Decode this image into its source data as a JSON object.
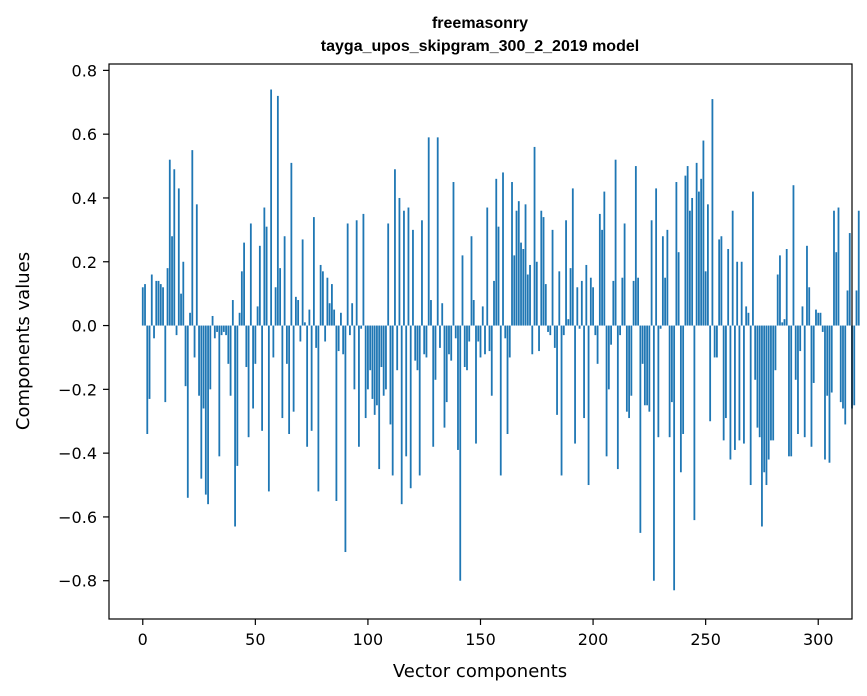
{
  "chart_data": {
    "type": "bar",
    "title": "freemasonry",
    "subtitle": "tayga_upos_skipgram_300_2_2019 model",
    "xlabel": "Vector components",
    "ylabel": "Components values",
    "xlim": [
      -15,
      315
    ],
    "ylim": [
      -0.92,
      0.82
    ],
    "xticks": [
      0,
      50,
      100,
      150,
      200,
      250,
      300
    ],
    "xtick_labels": [
      "0",
      "50",
      "100",
      "150",
      "200",
      "250",
      "300"
    ],
    "yticks": [
      -0.8,
      -0.6,
      -0.4,
      -0.2,
      0.0,
      0.2,
      0.4,
      0.6,
      0.8
    ],
    "ytick_labels": [
      "−0.8",
      "−0.6",
      "−0.4",
      "−0.2",
      "0.0",
      "0.2",
      "0.4",
      "0.6",
      "0.8"
    ],
    "bar_color": "#1f77b4",
    "grid": false,
    "values": [
      0.12,
      0.13,
      -0.34,
      -0.23,
      0.16,
      -0.04,
      0.14,
      0.14,
      0.13,
      0.12,
      -0.24,
      0.18,
      0.52,
      0.28,
      0.49,
      -0.03,
      0.43,
      0.1,
      0.2,
      -0.19,
      -0.54,
      0.04,
      0.55,
      -0.1,
      0.38,
      -0.22,
      -0.48,
      -0.26,
      -0.53,
      -0.56,
      -0.2,
      0.03,
      -0.04,
      -0.02,
      -0.41,
      -0.03,
      -0.02,
      -0.03,
      -0.12,
      -0.22,
      0.08,
      -0.63,
      -0.44,
      0.04,
      0.17,
      0.26,
      -0.13,
      -0.35,
      0.32,
      -0.26,
      -0.12,
      0.06,
      0.25,
      -0.33,
      0.37,
      0.31,
      -0.52,
      0.74,
      -0.1,
      0.12,
      0.72,
      0.18,
      -0.29,
      0.28,
      -0.12,
      -0.34,
      0.51,
      -0.27,
      0.09,
      0.08,
      -0.05,
      0.27,
      0.01,
      -0.38,
      0.05,
      -0.33,
      0.34,
      -0.07,
      -0.52,
      0.19,
      0.17,
      -0.05,
      0.15,
      0.07,
      0.13,
      0.05,
      -0.55,
      -0.08,
      0.04,
      -0.09,
      -0.71,
      0.32,
      -0.03,
      0.07,
      -0.2,
      0.33,
      -0.38,
      -0.01,
      0.35,
      -0.29,
      -0.2,
      -0.14,
      -0.23,
      -0.28,
      -0.25,
      -0.45,
      -0.13,
      -0.22,
      -0.2,
      0.32,
      -0.31,
      -0.47,
      0.49,
      -0.14,
      0.4,
      -0.56,
      0.36,
      -0.41,
      0.37,
      -0.51,
      0.3,
      -0.11,
      -0.14,
      -0.47,
      0.33,
      -0.09,
      -0.1,
      0.59,
      0.08,
      -0.38,
      -0.17,
      0.59,
      -0.07,
      0.07,
      -0.32,
      -0.24,
      -0.09,
      -0.11,
      0.45,
      -0.04,
      -0.39,
      -0.8,
      0.22,
      -0.13,
      -0.14,
      -0.05,
      0.28,
      0.08,
      -0.37,
      -0.05,
      -0.1,
      0.06,
      -0.09,
      0.37,
      -0.08,
      -0.22,
      0.14,
      0.46,
      0.31,
      -0.47,
      0.48,
      -0.04,
      -0.34,
      -0.1,
      0.45,
      0.22,
      0.36,
      0.39,
      0.26,
      0.24,
      0.38,
      0.16,
      0.19,
      -0.09,
      0.56,
      0.2,
      -0.08,
      0.36,
      0.34,
      0.13,
      -0.02,
      -0.03,
      0.3,
      -0.07,
      -0.28,
      0.17,
      -0.47,
      -0.03,
      0.33,
      0.02,
      0.18,
      0.43,
      -0.37,
      0.12,
      -0.01,
      0.14,
      -0.29,
      0.19,
      -0.5,
      0.15,
      0.12,
      -0.03,
      -0.12,
      0.35,
      0.3,
      0.42,
      -0.41,
      -0.2,
      -0.06,
      0.14,
      0.52,
      -0.45,
      -0.03,
      0.15,
      0.32,
      -0.27,
      -0.29,
      -0.22,
      0.14,
      0.5,
      0.15,
      -0.65,
      -0.12,
      -0.25,
      -0.25,
      -0.27,
      0.33,
      -0.8,
      0.43,
      -0.35,
      -0.01,
      0.28,
      0.15,
      0.3,
      -0.35,
      -0.24,
      -0.83,
      0.45,
      0.23,
      -0.46,
      -0.34,
      0.47,
      0.5,
      0.36,
      0.4,
      -0.61,
      0.51,
      0.42,
      0.46,
      0.58,
      0.17,
      0.38,
      -0.3,
      0.71,
      -0.1,
      -0.1,
      0.27,
      0.28,
      -0.36,
      -0.29,
      0.24,
      -0.42,
      0.36,
      -0.39,
      0.2,
      -0.36,
      0.2,
      -0.37,
      0.06,
      0.04,
      -0.5,
      0.42,
      -0.17,
      -0.32,
      -0.35,
      -0.63,
      -0.46,
      -0.5,
      -0.42,
      -0.36,
      -0.36,
      -0.14,
      0.16,
      0.22,
      0.01,
      0.02,
      0.24,
      -0.41,
      -0.41,
      0.44,
      -0.17,
      -0.34,
      -0.08,
      0.06,
      -0.35,
      0.25,
      0.12,
      -0.38,
      -0.18,
      0.05,
      0.04,
      0.04,
      -0.02,
      -0.42,
      -0.22,
      -0.43,
      -0.21,
      0.36,
      0.23,
      0.37,
      -0.24,
      -0.26,
      -0.31,
      0.11,
      0.29,
      -0.26,
      -0.25,
      0.11,
      0.36
    ]
  }
}
